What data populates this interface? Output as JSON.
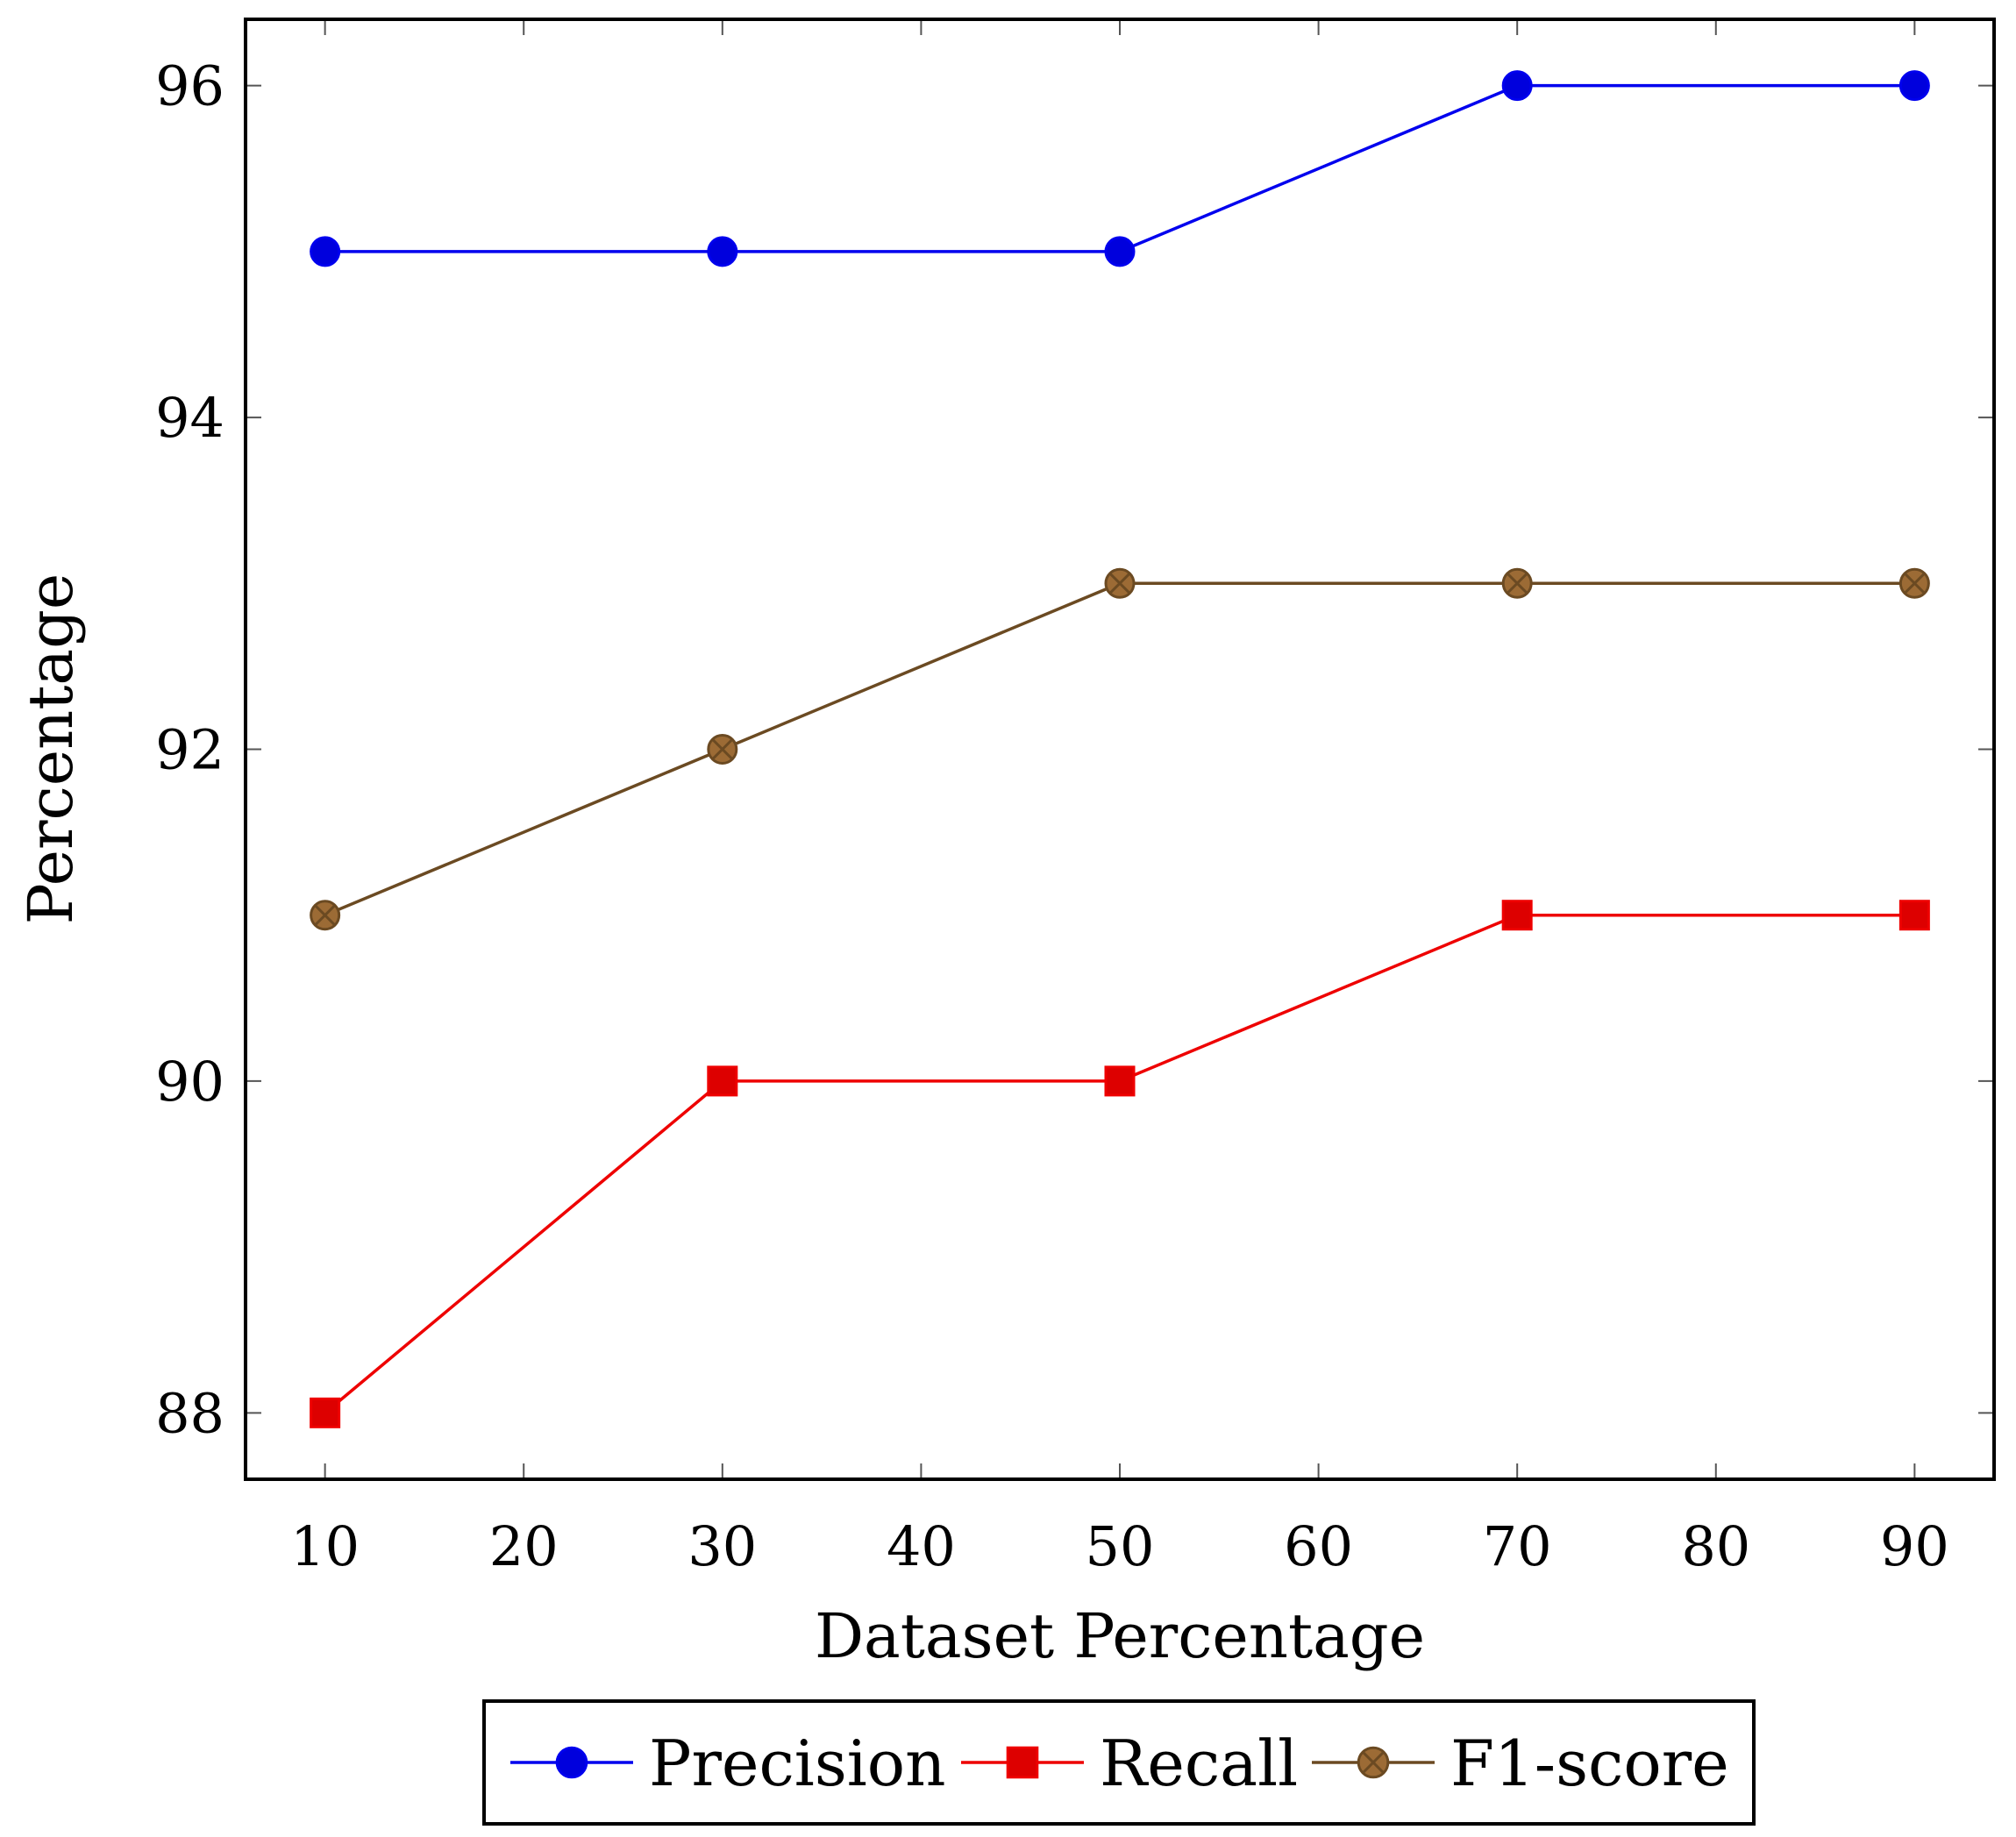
{
  "chart_data": {
    "type": "line",
    "title": "",
    "xlabel": "Dataset Percentage",
    "ylabel": "Percentage",
    "xlim": [
      6,
      94
    ],
    "ylim": [
      87.6,
      96.4
    ],
    "xticks": [
      10,
      20,
      30,
      40,
      50,
      60,
      70,
      80,
      90
    ],
    "yticks": [
      88,
      90,
      92,
      94,
      96
    ],
    "x": [
      10,
      30,
      50,
      70,
      90
    ],
    "grid": false,
    "legend_position": "bottom",
    "series": [
      {
        "name": "Precision",
        "values": [
          95,
          95,
          95,
          96,
          96
        ],
        "color": "#0000ee",
        "marker": "circle",
        "marker_fill": "#0000dd"
      },
      {
        "name": "Recall",
        "values": [
          88,
          90,
          90,
          91,
          91
        ],
        "color": "#ee0000",
        "marker": "square",
        "marker_fill": "#dd0000"
      },
      {
        "name": "F1-score",
        "values": [
          91,
          92,
          93,
          93,
          93
        ],
        "color": "#6b4a22",
        "marker": "otimes",
        "marker_fill": "#9c6b35"
      }
    ]
  }
}
